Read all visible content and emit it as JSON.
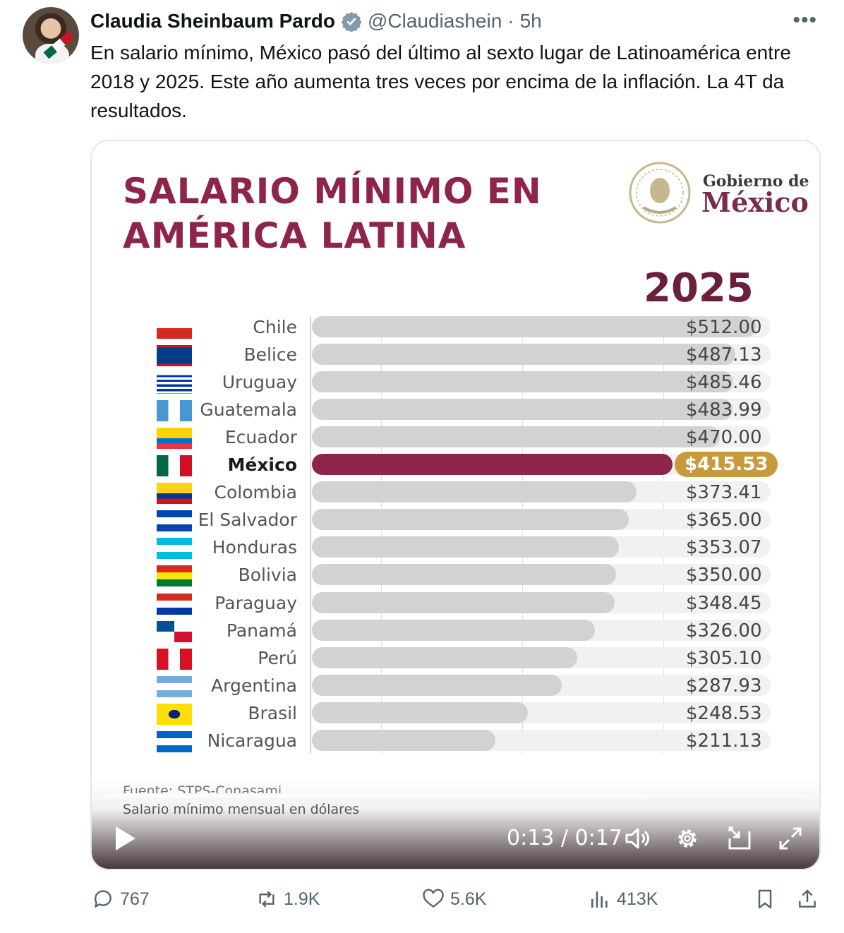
{
  "tweet": {
    "author_name": "Claudia Sheinbaum Pardo",
    "handle": "@Claudiashein",
    "separator": "·",
    "time": "5h",
    "text": "En salario mínimo, México pasó del último al sexto lugar de Latinoamérica entre 2018 y 2025. Este año aumenta tres veces por encima de la inflación. La 4T da resultados."
  },
  "media": {
    "title_line1": "SALARIO MÍNIMO EN",
    "title_line2": "AMÉRICA LATINA",
    "logo_small": "Gobierno de",
    "logo_big": "México",
    "year": "2025",
    "source": "Fuente: STPS-Conasami",
    "subtitle": "Salario mínimo mensual en dólares",
    "highlight_color": "#8e2449",
    "highlight_value_color": "#c79a3b"
  },
  "chart_data": {
    "type": "bar",
    "orientation": "horizontal",
    "title": "SALARIO MÍNIMO EN AMÉRICA LATINA",
    "subtitle": "Salario mínimo mensual en dólares",
    "categories": [
      "Chile",
      "Belice",
      "Uruguay",
      "Guatemala",
      "Ecuador",
      "México",
      "Colombia",
      "El Salvador",
      "Honduras",
      "Bolivia",
      "Paraguay",
      "Panamá",
      "Perú",
      "Argentina",
      "Brasil",
      "Nicaragua"
    ],
    "values": [
      512.0,
      487.13,
      485.46,
      483.99,
      470.0,
      415.53,
      373.41,
      365.0,
      353.07,
      350.0,
      348.45,
      326.0,
      305.1,
      287.93,
      248.53,
      211.13
    ],
    "value_labels": [
      "$512.00",
      "$487.13",
      "$485.46",
      "$483.99",
      "$470.00",
      "$415.53",
      "$373.41",
      "$365.00",
      "$353.07",
      "$350.00",
      "$348.45",
      "$326.00",
      "$305.10",
      "$287.93",
      "$248.53",
      "$211.13"
    ],
    "highlight": "México",
    "xlim": [
      0,
      520
    ],
    "grid": true
  },
  "player": {
    "timecode": "0:13 / 0:17",
    "progress": 0.765
  },
  "actions": {
    "replies": "767",
    "reposts": "1.9K",
    "likes": "5.6K",
    "views": "413K"
  }
}
